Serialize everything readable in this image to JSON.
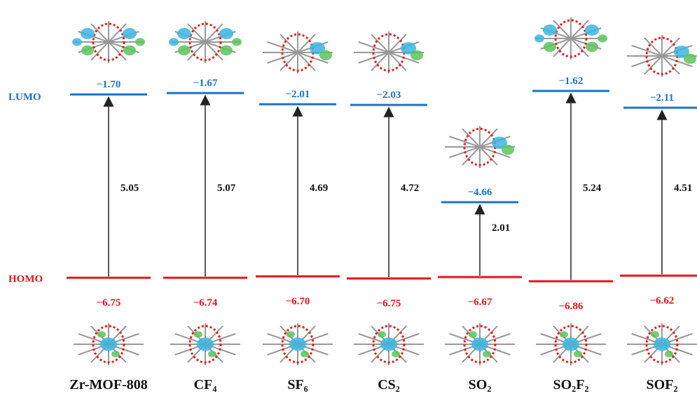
{
  "level_labels": {
    "lumo": "LUMO",
    "homo": "HOMO"
  },
  "systems": [
    {
      "name": "Zr-MOF-808",
      "lumo": "−1.70",
      "homo": "−6.75",
      "gap": "5.05"
    },
    {
      "name": "CF₄",
      "lumo": "−1.67",
      "homo": "−6.74",
      "gap": "5.07"
    },
    {
      "name": "SF₆",
      "lumo": "−2.01",
      "homo": "−6.70",
      "gap": "4.69"
    },
    {
      "name": "CS₂",
      "lumo": "−2.03",
      "homo": "−6.75",
      "gap": "4.72"
    },
    {
      "name": "SO₂",
      "lumo": "−4.66",
      "homo": "−6.67",
      "gap": "2.01"
    },
    {
      "name": "SO₂F₂",
      "lumo": "−1.62",
      "homo": "−6.86",
      "gap": "5.24"
    },
    {
      "name": "SOF₂",
      "lumo": "−2.11",
      "homo": "−6.62",
      "gap": "4.51"
    }
  ]
}
